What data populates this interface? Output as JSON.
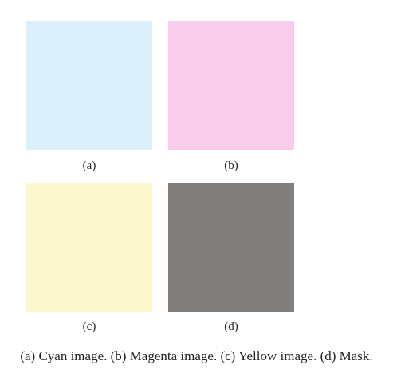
{
  "figure": {
    "panels": [
      {
        "id": "a",
        "label": "(a)",
        "color": "#dcf0fb"
      },
      {
        "id": "b",
        "label": "(b)",
        "color": "#f8cceb"
      },
      {
        "id": "c",
        "label": "(c)",
        "color": "#fcf7cd"
      },
      {
        "id": "d",
        "label": "(d)",
        "color": "#827e7b"
      }
    ],
    "caption": "(a) Cyan image. (b) Magenta image. (c) Yellow image. (d) Mask."
  }
}
